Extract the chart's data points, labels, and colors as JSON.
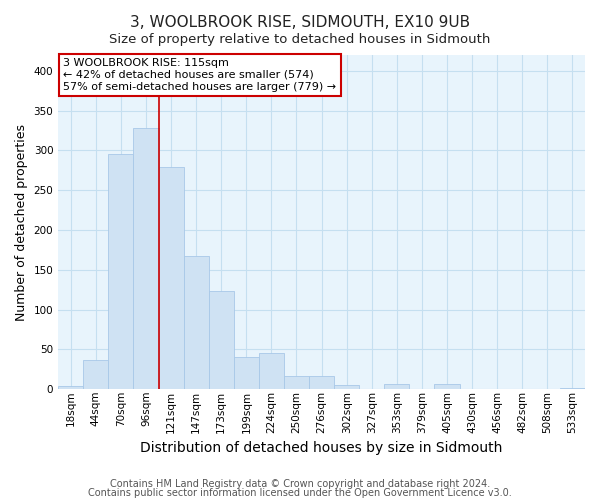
{
  "title": "3, WOOLBROOK RISE, SIDMOUTH, EX10 9UB",
  "subtitle": "Size of property relative to detached houses in Sidmouth",
  "xlabel": "Distribution of detached houses by size in Sidmouth",
  "ylabel": "Number of detached properties",
  "bar_labels": [
    "18sqm",
    "44sqm",
    "70sqm",
    "96sqm",
    "121sqm",
    "147sqm",
    "173sqm",
    "199sqm",
    "224sqm",
    "250sqm",
    "276sqm",
    "302sqm",
    "327sqm",
    "353sqm",
    "379sqm",
    "405sqm",
    "430sqm",
    "456sqm",
    "482sqm",
    "508sqm",
    "533sqm"
  ],
  "bar_heights": [
    4,
    37,
    295,
    328,
    279,
    167,
    123,
    40,
    45,
    16,
    17,
    5,
    0,
    6,
    0,
    6,
    0,
    0,
    0,
    0,
    2
  ],
  "bar_color": "#cfe2f3",
  "bar_edge_color": "#a8c8e8",
  "vline_color": "#cc0000",
  "annotation_text": "3 WOOLBROOK RISE: 115sqm\n← 42% of detached houses are smaller (574)\n57% of semi-detached houses are larger (779) →",
  "annotation_box_color": "#ffffff",
  "annotation_box_edge": "#cc0000",
  "ylim": [
    0,
    420
  ],
  "yticks": [
    0,
    50,
    100,
    150,
    200,
    250,
    300,
    350,
    400
  ],
  "footer1": "Contains HM Land Registry data © Crown copyright and database right 2024.",
  "footer2": "Contains public sector information licensed under the Open Government Licence v3.0.",
  "bg_color": "#ffffff",
  "plot_bg_color": "#e8f4fc",
  "grid_color": "#c5dff0",
  "title_fontsize": 11,
  "subtitle_fontsize": 9.5,
  "xlabel_fontsize": 10,
  "ylabel_fontsize": 9,
  "tick_fontsize": 7.5,
  "annot_fontsize": 8,
  "footer_fontsize": 7
}
